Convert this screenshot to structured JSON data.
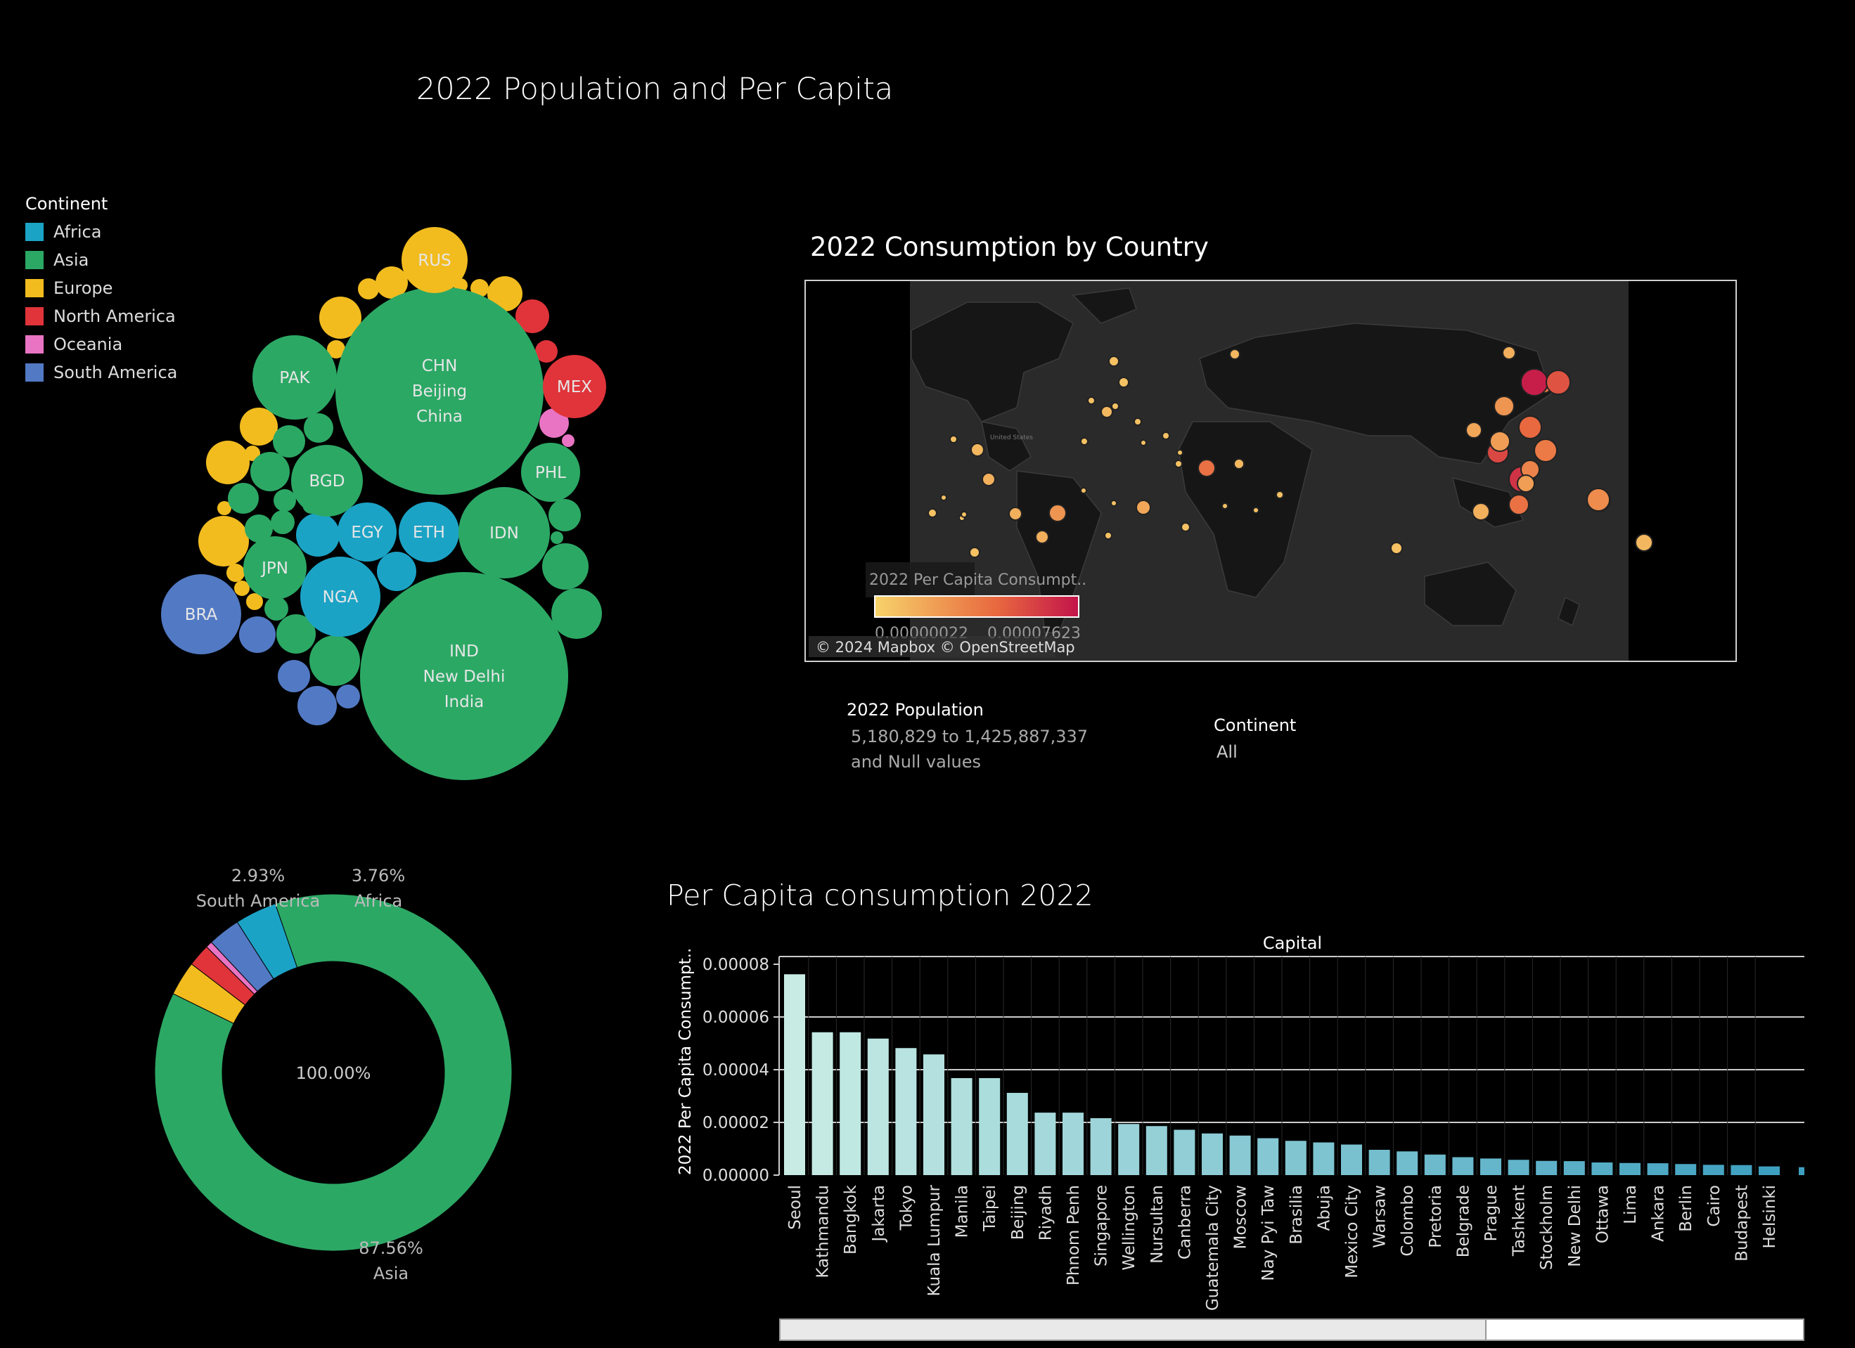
{
  "dashboard_title": "2022 Population and Per Capita",
  "legend": {
    "title": "Continent",
    "items": [
      {
        "label": "Africa",
        "color": "#1ba3c6"
      },
      {
        "label": "Asia",
        "color": "#2ca865"
      },
      {
        "label": "Europe",
        "color": "#f2bc1f"
      },
      {
        "label": "North America",
        "color": "#e0343a"
      },
      {
        "label": "Oceania",
        "color": "#e874c3"
      },
      {
        "label": "South America",
        "color": "#5279c4"
      }
    ]
  },
  "bubbles": [
    {
      "code": "CHN",
      "lines": [
        "CHN",
        "Beijing",
        "China"
      ],
      "continent": "Asia"
    },
    {
      "code": "IND",
      "lines": [
        "IND",
        "New Delhi",
        "India"
      ],
      "continent": "Asia"
    },
    {
      "code": "RUS",
      "lines": [
        "RUS"
      ],
      "continent": "Europe"
    },
    {
      "code": "PAK",
      "lines": [
        "PAK"
      ],
      "continent": "Asia"
    },
    {
      "code": "MEX",
      "lines": [
        "MEX"
      ],
      "continent": "North America"
    },
    {
      "code": "BGD",
      "lines": [
        "BGD"
      ],
      "continent": "Asia"
    },
    {
      "code": "PHL",
      "lines": [
        "PHL"
      ],
      "continent": "Asia"
    },
    {
      "code": "EGY",
      "lines": [
        "EGY"
      ],
      "continent": "Africa"
    },
    {
      "code": "ETH",
      "lines": [
        "ETH"
      ],
      "continent": "Africa"
    },
    {
      "code": "IDN",
      "lines": [
        "IDN"
      ],
      "continent": "Asia"
    },
    {
      "code": "JPN",
      "lines": [
        "JPN"
      ],
      "continent": "Asia"
    },
    {
      "code": "NGA",
      "lines": [
        "NGA"
      ],
      "continent": "Africa"
    },
    {
      "code": "BRA",
      "lines": [
        "BRA"
      ],
      "continent": "South America"
    }
  ],
  "map": {
    "title": "2022 Consumption by Country",
    "legend_title": "2022 Per Capita Consumpt..",
    "legend_min": "0.00000022",
    "legend_max": "0.00007623",
    "attribution": "© 2024 Mapbox © OpenStreetMap",
    "color_low": "#f7d36a",
    "color_high": "#c2134a",
    "label_us": "United States"
  },
  "filters": {
    "population": {
      "label": "2022 Population",
      "value_line1": "5,180,829 to 1,425,887,337",
      "value_line2": "and Null values"
    },
    "continent": {
      "label": "Continent",
      "value": "All"
    }
  },
  "donut": {
    "center_label": "100.00%",
    "segments": [
      {
        "name": "Africa",
        "percent": 3.76,
        "label": "3.76%"
      },
      {
        "name": "Asia",
        "percent": 87.56,
        "label": "87.56%"
      },
      {
        "name": "Europe",
        "percent": 3.12,
        "label": ""
      },
      {
        "name": "North America",
        "percent": 2.03,
        "label": ""
      },
      {
        "name": "Oceania",
        "percent": 0.6,
        "label": ""
      },
      {
        "name": "South America",
        "percent": 2.93,
        "label": "2.93%"
      }
    ]
  },
  "bar_chart_title": "Per Capita consumption 2022",
  "chart_data": {
    "type": "bar",
    "title": "Per Capita consumption 2022",
    "xlabel": "Capital",
    "ylabel": "2022 Per Capita Consumpt..",
    "ylim": [
      0,
      8e-05
    ],
    "yticks": [
      "0.00000",
      "0.00002",
      "0.00004",
      "0.00006",
      "0.00008"
    ],
    "categories": [
      "Seoul",
      "Kathmandu",
      "Bangkok",
      "Jakarta",
      "Tokyo",
      "Kuala Lumpur",
      "Manila",
      "Taipei",
      "Beijing",
      "Riyadh",
      "Phnom Penh",
      "Singapore",
      "Wellington",
      "Nursultan",
      "Canberra",
      "Guatemala City",
      "Moscow",
      "Nay Pyi Taw",
      "Brasilia",
      "Abuja",
      "Mexico City",
      "Warsaw",
      "Colombo",
      "Pretoria",
      "Belgrade",
      "Prague",
      "Tashkent",
      "Stockholm",
      "New Delhi",
      "Ottawa",
      "Lima",
      "Ankara",
      "Berlin",
      "Cairo",
      "Budapest",
      "Helsinki"
    ],
    "values": [
      7.62e-05,
      5.42e-05,
      5.42e-05,
      5.18e-05,
      4.82e-05,
      4.58e-05,
      3.68e-05,
      3.68e-05,
      3.12e-05,
      2.37e-05,
      2.37e-05,
      2.16e-05,
      1.94e-05,
      1.86e-05,
      1.72e-05,
      1.58e-05,
      1.5e-05,
      1.4e-05,
      1.3e-05,
      1.24e-05,
      1.16e-05,
      9.6e-06,
      9e-06,
      7.8e-06,
      6.8e-06,
      6.3e-06,
      5.8e-06,
      5.4e-06,
      5.3e-06,
      4.8e-06,
      4.6e-06,
      4.5e-06,
      4.2e-06,
      3.9e-06,
      3.8e-06,
      3.3e-06
    ],
    "grid": true
  }
}
